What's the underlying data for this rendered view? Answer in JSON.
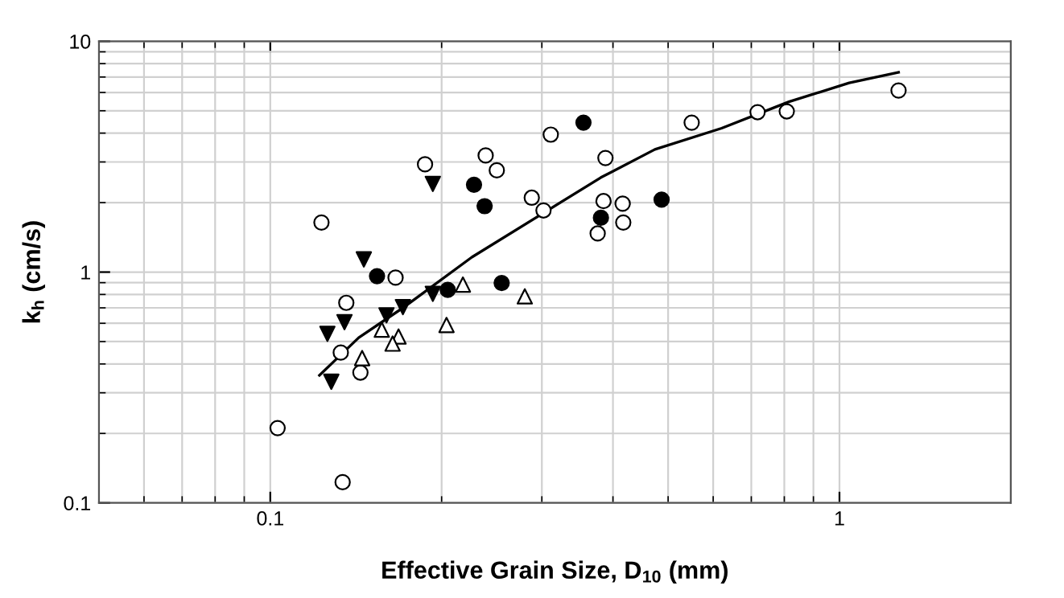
{
  "chart_data": {
    "type": "scatter",
    "xlabel": "Effective Grain Size, D$_{10}$ (mm)",
    "ylabel": "k$_{h}$ (cm/s)",
    "log": "xy",
    "grid": true,
    "xlim": [
      0.05,
      2
    ],
    "xticks": [
      0.1,
      1
    ],
    "ylim": [
      0.1,
      10
    ],
    "yticks": [
      0.1,
      1,
      10
    ],
    "series": [
      {
        "marker": "circle",
        "color": "#ffffff",
        "x": [
          0.103,
          0.134,
          0.136,
          0.133,
          0.144,
          0.166,
          0.123,
          0.187,
          0.239,
          0.25,
          0.288,
          0.302,
          0.311,
          0.388,
          0.385,
          0.416,
          0.417,
          0.376,
          0.55,
          0.718,
          0.808,
          1.27
        ],
        "values": [
          0.211,
          0.123,
          0.736,
          0.448,
          0.367,
          0.946,
          1.64,
          2.93,
          3.2,
          2.76,
          2.1,
          1.85,
          3.94,
          3.12,
          2.03,
          1.98,
          1.64,
          1.47,
          4.44,
          4.93,
          4.97,
          6.12
        ]
      },
      {
        "marker": "circle",
        "color": "#000000",
        "x": [
          0.154,
          0.205,
          0.255,
          0.228,
          0.238,
          0.355,
          0.381,
          0.487
        ],
        "values": [
          0.96,
          0.837,
          0.897,
          2.39,
          1.93,
          4.44,
          1.72,
          2.06
        ]
      },
      {
        "marker": "triangle_down",
        "color": "#000000",
        "x": [
          0.146,
          0.135,
          0.126,
          0.128,
          0.16,
          0.171,
          0.193,
          0.193
        ],
        "values": [
          1.135,
          0.607,
          0.54,
          0.335,
          0.65,
          0.705,
          0.805,
          2.41
        ]
      },
      {
        "marker": "triangle",
        "color": "#ffffff",
        "x": [
          0.157,
          0.168,
          0.164,
          0.145,
          0.204,
          0.218,
          0.28
        ],
        "values": [
          0.563,
          0.526,
          0.49,
          0.424,
          0.59,
          0.883,
          0.785
        ]
      },
      {
        "type": "line",
        "marker": "none",
        "color": "#000000",
        "x": [
          0.122,
          0.143,
          0.171,
          0.226,
          0.307,
          0.381,
          0.474,
          0.621,
          0.815,
          1.04,
          1.27
        ],
        "values": [
          0.357,
          0.52,
          0.7,
          1.16,
          1.85,
          2.57,
          3.4,
          4.2,
          5.47,
          6.6,
          7.34
        ]
      }
    ]
  }
}
